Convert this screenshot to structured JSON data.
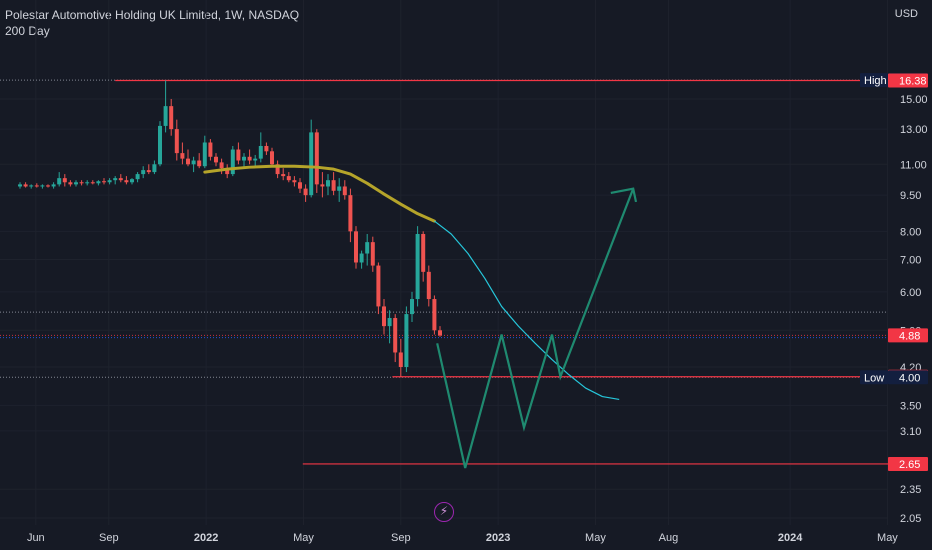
{
  "header": {
    "title": "Polestar Automotive Holding UK Limited, 1W, NASDAQ",
    "indicator": "200 Day",
    "currency": "USD"
  },
  "chart_data": {
    "type": "candlestick",
    "y_scale": "log",
    "ylim": [
      2.0,
      18.0
    ],
    "y_ticks": [
      "15.00",
      "13.00",
      "11.00",
      "9.50",
      "8.00",
      "7.00",
      "6.00",
      "5.00",
      "4.20",
      "3.50",
      "3.10",
      "2.35",
      "2.05"
    ],
    "x_ticks": [
      {
        "label": "Jun",
        "x": "2021-06",
        "bold": false
      },
      {
        "label": "Sep",
        "x": "2021-09",
        "bold": false
      },
      {
        "label": "2022",
        "x": "2022-01",
        "bold": true
      },
      {
        "label": "May",
        "x": "2022-05",
        "bold": false
      },
      {
        "label": "Sep",
        "x": "2022-09",
        "bold": false
      },
      {
        "label": "2023",
        "x": "2023-01",
        "bold": true
      },
      {
        "label": "May",
        "x": "2023-05",
        "bold": false
      },
      {
        "label": "Aug",
        "x": "2023-08",
        "bold": false
      },
      {
        "label": "2024",
        "x": "2024-01",
        "bold": true
      },
      {
        "label": "May",
        "x": "2024-05",
        "bold": false
      }
    ],
    "candles": [
      {
        "o": 9.9,
        "h": 10.1,
        "l": 9.8,
        "c": 10.0
      },
      {
        "o": 10.0,
        "h": 10.1,
        "l": 9.85,
        "c": 9.9
      },
      {
        "o": 9.9,
        "h": 10.0,
        "l": 9.8,
        "c": 9.95
      },
      {
        "o": 9.95,
        "h": 10.05,
        "l": 9.85,
        "c": 9.9
      },
      {
        "o": 9.9,
        "h": 10.0,
        "l": 9.8,
        "c": 9.95
      },
      {
        "o": 9.95,
        "h": 10.0,
        "l": 9.85,
        "c": 9.9
      },
      {
        "o": 9.9,
        "h": 10.1,
        "l": 9.8,
        "c": 10.0
      },
      {
        "o": 10.0,
        "h": 10.6,
        "l": 9.9,
        "c": 10.3
      },
      {
        "o": 10.3,
        "h": 10.5,
        "l": 9.9,
        "c": 10.1
      },
      {
        "o": 10.1,
        "h": 10.2,
        "l": 9.9,
        "c": 10.0
      },
      {
        "o": 10.0,
        "h": 10.2,
        "l": 9.9,
        "c": 10.1
      },
      {
        "o": 10.1,
        "h": 10.2,
        "l": 9.95,
        "c": 10.05
      },
      {
        "o": 10.05,
        "h": 10.2,
        "l": 9.95,
        "c": 10.1
      },
      {
        "o": 10.1,
        "h": 10.2,
        "l": 10.0,
        "c": 10.05
      },
      {
        "o": 10.05,
        "h": 10.2,
        "l": 9.95,
        "c": 10.15
      },
      {
        "o": 10.15,
        "h": 10.3,
        "l": 10.0,
        "c": 10.1
      },
      {
        "o": 10.1,
        "h": 10.3,
        "l": 10.0,
        "c": 10.2
      },
      {
        "o": 10.2,
        "h": 10.4,
        "l": 10.0,
        "c": 10.3
      },
      {
        "o": 10.3,
        "h": 10.5,
        "l": 10.1,
        "c": 10.2
      },
      {
        "o": 10.2,
        "h": 10.4,
        "l": 10.0,
        "c": 10.1
      },
      {
        "o": 10.1,
        "h": 10.3,
        "l": 10.0,
        "c": 10.25
      },
      {
        "o": 10.25,
        "h": 10.6,
        "l": 10.1,
        "c": 10.5
      },
      {
        "o": 10.5,
        "h": 10.9,
        "l": 10.3,
        "c": 10.7
      },
      {
        "o": 10.7,
        "h": 11.0,
        "l": 10.5,
        "c": 10.6
      },
      {
        "o": 10.6,
        "h": 11.2,
        "l": 10.5,
        "c": 11.0
      },
      {
        "o": 11.0,
        "h": 13.5,
        "l": 10.9,
        "c": 13.2
      },
      {
        "o": 13.2,
        "h": 16.38,
        "l": 12.8,
        "c": 14.5
      },
      {
        "o": 14.5,
        "h": 15.0,
        "l": 12.6,
        "c": 13.0
      },
      {
        "o": 13.0,
        "h": 13.6,
        "l": 11.2,
        "c": 11.6
      },
      {
        "o": 11.6,
        "h": 12.2,
        "l": 11.0,
        "c": 11.3
      },
      {
        "o": 11.3,
        "h": 11.8,
        "l": 10.9,
        "c": 11.0
      },
      {
        "o": 11.0,
        "h": 11.4,
        "l": 10.6,
        "c": 11.2
      },
      {
        "o": 11.2,
        "h": 11.6,
        "l": 10.8,
        "c": 10.9
      },
      {
        "o": 10.9,
        "h": 12.6,
        "l": 10.8,
        "c": 12.2
      },
      {
        "o": 12.2,
        "h": 12.4,
        "l": 11.2,
        "c": 11.4
      },
      {
        "o": 11.4,
        "h": 11.6,
        "l": 10.9,
        "c": 11.1
      },
      {
        "o": 11.1,
        "h": 11.3,
        "l": 10.5,
        "c": 10.8
      },
      {
        "o": 10.8,
        "h": 11.0,
        "l": 10.3,
        "c": 10.5
      },
      {
        "o": 10.5,
        "h": 12.0,
        "l": 10.4,
        "c": 11.8
      },
      {
        "o": 11.8,
        "h": 12.2,
        "l": 11.0,
        "c": 11.2
      },
      {
        "o": 11.2,
        "h": 11.6,
        "l": 10.8,
        "c": 11.4
      },
      {
        "o": 11.4,
        "h": 11.8,
        "l": 11.0,
        "c": 11.2
      },
      {
        "o": 11.2,
        "h": 11.5,
        "l": 10.9,
        "c": 11.3
      },
      {
        "o": 11.3,
        "h": 12.8,
        "l": 11.1,
        "c": 12.0
      },
      {
        "o": 12.0,
        "h": 12.2,
        "l": 11.5,
        "c": 11.7
      },
      {
        "o": 11.7,
        "h": 11.9,
        "l": 10.9,
        "c": 11.0
      },
      {
        "o": 11.0,
        "h": 11.2,
        "l": 10.3,
        "c": 10.5
      },
      {
        "o": 10.5,
        "h": 10.8,
        "l": 10.2,
        "c": 10.4
      },
      {
        "o": 10.4,
        "h": 10.6,
        "l": 10.1,
        "c": 10.2
      },
      {
        "o": 10.2,
        "h": 10.4,
        "l": 9.9,
        "c": 10.1
      },
      {
        "o": 10.1,
        "h": 10.3,
        "l": 9.6,
        "c": 9.8
      },
      {
        "o": 9.8,
        "h": 10.0,
        "l": 9.2,
        "c": 9.5
      },
      {
        "o": 9.5,
        "h": 13.6,
        "l": 9.4,
        "c": 12.8
      },
      {
        "o": 12.8,
        "h": 13.0,
        "l": 9.6,
        "c": 10.0
      },
      {
        "o": 10.0,
        "h": 10.6,
        "l": 9.4,
        "c": 9.9
      },
      {
        "o": 9.9,
        "h": 10.5,
        "l": 9.5,
        "c": 10.2
      },
      {
        "o": 10.2,
        "h": 10.6,
        "l": 9.5,
        "c": 9.7
      },
      {
        "o": 9.7,
        "h": 10.3,
        "l": 9.2,
        "c": 9.9
      },
      {
        "o": 9.9,
        "h": 10.2,
        "l": 9.3,
        "c": 9.5
      },
      {
        "o": 9.5,
        "h": 9.8,
        "l": 7.6,
        "c": 8.0
      },
      {
        "o": 8.0,
        "h": 8.2,
        "l": 6.7,
        "c": 6.9
      },
      {
        "o": 6.9,
        "h": 7.3,
        "l": 6.7,
        "c": 7.2
      },
      {
        "o": 7.2,
        "h": 7.9,
        "l": 6.8,
        "c": 7.6
      },
      {
        "o": 7.6,
        "h": 7.8,
        "l": 6.6,
        "c": 6.8
      },
      {
        "o": 6.8,
        "h": 6.9,
        "l": 5.4,
        "c": 5.6
      },
      {
        "o": 5.6,
        "h": 5.8,
        "l": 4.9,
        "c": 5.1
      },
      {
        "o": 5.1,
        "h": 5.5,
        "l": 4.7,
        "c": 5.3
      },
      {
        "o": 5.3,
        "h": 5.4,
        "l": 4.3,
        "c": 4.5
      },
      {
        "o": 4.5,
        "h": 4.8,
        "l": 4.01,
        "c": 4.2
      },
      {
        "o": 4.2,
        "h": 5.6,
        "l": 4.1,
        "c": 5.4
      },
      {
        "o": 5.4,
        "h": 6.0,
        "l": 5.2,
        "c": 5.8
      },
      {
        "o": 5.8,
        "h": 8.2,
        "l": 5.6,
        "c": 7.9
      },
      {
        "o": 7.9,
        "h": 8.0,
        "l": 6.3,
        "c": 6.6
      },
      {
        "o": 6.6,
        "h": 6.8,
        "l": 5.6,
        "c": 5.8
      },
      {
        "o": 5.8,
        "h": 5.9,
        "l": 4.9,
        "c": 5.0
      },
      {
        "o": 5.0,
        "h": 5.1,
        "l": 4.85,
        "c": 4.88
      }
    ],
    "ma_200": [
      {
        "i": 33,
        "v": 10.6
      },
      {
        "i": 37,
        "v": 10.75
      },
      {
        "i": 41,
        "v": 10.85
      },
      {
        "i": 45,
        "v": 10.9
      },
      {
        "i": 49,
        "v": 10.9
      },
      {
        "i": 53,
        "v": 10.85
      },
      {
        "i": 56,
        "v": 10.75
      },
      {
        "i": 59,
        "v": 10.5
      },
      {
        "i": 62,
        "v": 10.05
      },
      {
        "i": 65,
        "v": 9.55
      },
      {
        "i": 68,
        "v": 9.1
      },
      {
        "i": 71,
        "v": 8.7
      },
      {
        "i": 74,
        "v": 8.4
      }
    ],
    "ma_projection": [
      {
        "i": 74,
        "v": 8.4
      },
      {
        "i": 77,
        "v": 7.9
      },
      {
        "i": 80,
        "v": 7.2
      },
      {
        "i": 83,
        "v": 6.4
      },
      {
        "i": 86,
        "v": 5.6
      },
      {
        "i": 89,
        "v": 5.1
      },
      {
        "i": 92,
        "v": 4.7
      },
      {
        "i": 95,
        "v": 4.35
      },
      {
        "i": 98,
        "v": 4.05
      },
      {
        "i": 101,
        "v": 3.8
      },
      {
        "i": 104,
        "v": 3.65
      },
      {
        "i": 107,
        "v": 3.6
      }
    ],
    "projection_path": [
      {
        "i": 74.5,
        "v": 4.7
      },
      {
        "i": 79.5,
        "v": 2.6
      },
      {
        "i": 86,
        "v": 4.9
      },
      {
        "i": 90,
        "v": 3.15
      },
      {
        "i": 95,
        "v": 4.9
      },
      {
        "i": 96.5,
        "v": 4.01
      },
      {
        "i": 109.5,
        "v": 9.8
      }
    ],
    "projection_arrowhead": [
      {
        "i": 105.5,
        "v": 9.6
      },
      {
        "i": 109.5,
        "v": 9.8
      },
      {
        "i": 110,
        "v": 9.2
      }
    ],
    "levels": [
      {
        "price": 16.38,
        "from_i": 17,
        "label": "16.38",
        "color": "#f23645"
      },
      {
        "price": 4.01,
        "from_i": 66.5,
        "label": "4.01",
        "color": "#f23645"
      },
      {
        "price": 2.65,
        "from_i": 50.5,
        "label": "2.65",
        "color": "#f23645"
      }
    ],
    "dotted_levels": [
      {
        "price": 16.41,
        "color": "#a0a4b0"
      },
      {
        "price": 5.45,
        "color": "#a0a4b0"
      },
      {
        "price": 4.88,
        "color": "#f23645"
      },
      {
        "price": 4.83,
        "color": "#2962ff"
      },
      {
        "price": 4.0,
        "color": "#a0a4b0"
      }
    ],
    "price_tags": [
      {
        "label": "High",
        "value": "16.41",
        "price": 16.41,
        "bg": "#131f3f",
        "labelbg": "#131f3f"
      },
      {
        "label": "",
        "value": "16.38",
        "price": 16.38,
        "bg": "#f23645"
      },
      {
        "label": "",
        "value": "4.88",
        "price": 4.88,
        "bg": "#f23645"
      },
      {
        "label": "",
        "value": "4.01",
        "price": 4.01,
        "bg": "#f23645"
      },
      {
        "label": "Low",
        "value": "4.00",
        "price": 4.0,
        "bg": "#131f3f",
        "labelbg": "#131f3f"
      },
      {
        "label": "",
        "value": "2.65",
        "price": 2.65,
        "bg": "#f23645"
      }
    ],
    "colors": {
      "background": "#161a25",
      "up": "#26a69a",
      "down": "#ef5350",
      "ma": "#b5a42a",
      "ma_projection": "#26c6da",
      "projection": "#1f8a70",
      "grid": "#1e222d"
    }
  }
}
